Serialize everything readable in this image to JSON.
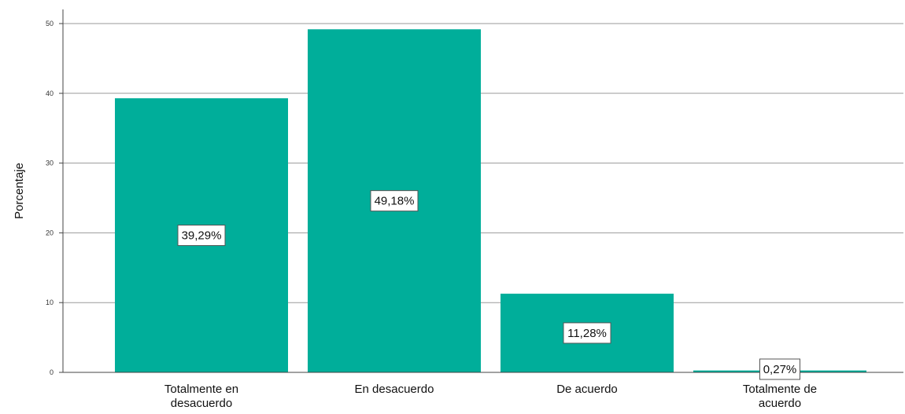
{
  "chart_data": {
    "type": "bar",
    "ylabel": "Porcentaje",
    "xlabel": "",
    "ylim": [
      0,
      50
    ],
    "yticks": [
      0,
      10,
      20,
      30,
      40,
      50
    ],
    "grid": true,
    "categories": [
      "Totalmente en desacuerdo",
      "En desacuerdo",
      "De acuerdo",
      "Totalmente de acuerdo"
    ],
    "values": [
      39.29,
      49.18,
      11.28,
      0.27
    ],
    "data_labels": [
      "39,29%",
      "49,18%",
      "11,28%",
      "0,27%"
    ],
    "bar_color": "#00ae9a"
  }
}
